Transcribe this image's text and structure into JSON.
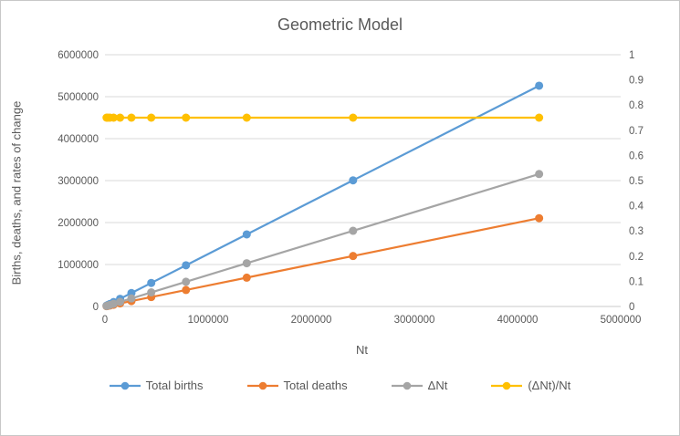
{
  "chart_data": {
    "type": "line",
    "title": "Geometric Model",
    "xlabel": "Nt",
    "ylabel": "Births, deaths, and rates of change",
    "legend_position": "bottom",
    "grid": "horizontal",
    "x": [
      15625,
      27344,
      47852,
      83740,
      146546,
      256455,
      448796,
      785393,
      1374437,
      2405265,
      4209214
    ],
    "x_axis": {
      "min": 0,
      "max": 5000000,
      "step": 1000000
    },
    "y_left": {
      "min": 0,
      "max": 6000000,
      "step": 1000000
    },
    "y_right": {
      "min": 0,
      "max": 1,
      "step": 0.1
    },
    "series": [
      {
        "id": "total-births",
        "name": "Total births",
        "axis": "left",
        "color": "#5B9BD5",
        "values": [
          19531,
          34180,
          59815,
          104675,
          183183,
          320569,
          560995,
          981741,
          1718046,
          3006581,
          5261518
        ]
      },
      {
        "id": "total-deaths",
        "name": "Total deaths",
        "axis": "left",
        "color": "#ED7D31",
        "values": [
          7813,
          13672,
          23926,
          41870,
          73273,
          128228,
          224398,
          392697,
          687219,
          1202633,
          2104607
        ]
      },
      {
        "id": "delta-nt",
        "name": "ΔNt",
        "axis": "left",
        "color": "#A5A5A5",
        "values": [
          11719,
          20508,
          35889,
          62805,
          109910,
          192341,
          336597,
          589045,
          1030828,
          1803949,
          3156911
        ]
      },
      {
        "id": "delta-nt-over-nt",
        "name": "(ΔNt)/Nt",
        "axis": "right",
        "color": "#FFC000",
        "values": [
          0.75,
          0.75,
          0.75,
          0.75,
          0.75,
          0.75,
          0.75,
          0.75,
          0.75,
          0.75,
          0.75
        ]
      }
    ],
    "style": {
      "grid_color": "#D9D9D9",
      "axis_color": "#C9C9C9",
      "text_color": "#595959"
    }
  }
}
